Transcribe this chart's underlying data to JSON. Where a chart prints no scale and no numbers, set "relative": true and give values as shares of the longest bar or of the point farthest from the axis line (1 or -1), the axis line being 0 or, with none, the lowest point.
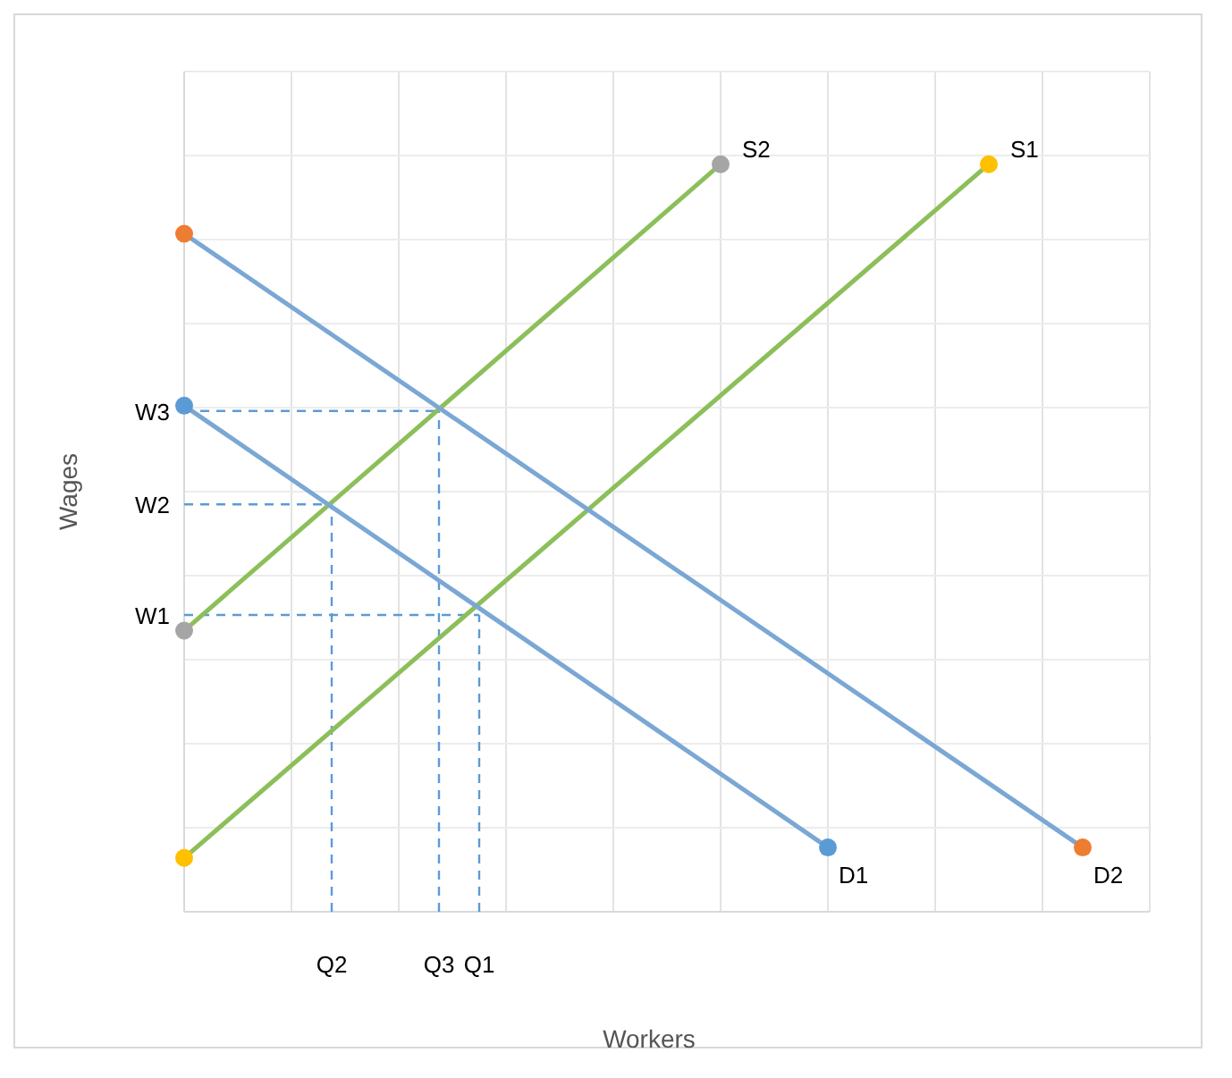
{
  "chart_data": {
    "type": "line",
    "relative": true,
    "xlabel": "Workers",
    "ylabel": "Wages",
    "grid": true,
    "marker": "circle",
    "line_style": "solid",
    "categories": [
      null,
      null,
      null,
      null,
      null,
      null,
      null,
      null,
      null,
      null,
      null,
      "Q2",
      null,
      null,
      null,
      null,
      null,
      null,
      null,
      "Q3",
      null,
      null,
      "Q1",
      null,
      null,
      null,
      null,
      null,
      null,
      null,
      null,
      null,
      null,
      null,
      null,
      null,
      null,
      null,
      null,
      null,
      null,
      null,
      null,
      null,
      null,
      null,
      null,
      null,
      null,
      null,
      null,
      null,
      null,
      null,
      null,
      null,
      null,
      null,
      null,
      null,
      null,
      null,
      null,
      null,
      null,
      null,
      null,
      null,
      null,
      null,
      null,
      null,
      null
    ],
    "series": [
      {
        "name": "S2",
        "color": "#8cbf5a",
        "colors": [
          "#a5a5a5",
          null,
          null,
          null,
          null,
          null,
          null,
          null,
          null,
          null,
          null,
          null,
          null,
          null,
          null,
          null,
          null,
          null,
          null,
          null,
          null,
          null,
          null,
          null,
          null,
          null,
          null,
          null,
          null,
          null,
          null,
          null,
          null,
          null,
          null,
          null,
          null,
          null,
          null,
          null,
          "#a5a5a5",
          null,
          null,
          null,
          null,
          null,
          null,
          null,
          null,
          null,
          null,
          null,
          null,
          null,
          null,
          null,
          null,
          null,
          null,
          null,
          null,
          null,
          null,
          null,
          null,
          null,
          null,
          null,
          null,
          null,
          null,
          null,
          null
        ],
        "values": [
          0.376,
          null,
          null,
          null,
          null,
          null,
          null,
          null,
          null,
          null,
          null,
          null,
          null,
          null,
          null,
          null,
          null,
          null,
          null,
          null,
          null,
          null,
          null,
          null,
          null,
          null,
          null,
          null,
          null,
          null,
          null,
          null,
          null,
          null,
          null,
          null,
          null,
          null,
          null,
          null,
          1,
          null,
          null,
          null,
          null,
          null,
          null,
          null,
          null,
          null,
          null,
          null,
          null,
          null,
          null,
          null,
          null,
          null,
          null,
          null,
          null,
          null,
          null,
          null,
          null,
          null,
          null,
          null,
          null,
          null,
          null,
          null,
          null
        ]
      },
      {
        "name": "S1",
        "color": "#8cbf5a",
        "colors": [
          "#ffc000",
          null,
          null,
          null,
          null,
          null,
          null,
          null,
          null,
          null,
          null,
          null,
          null,
          null,
          null,
          null,
          null,
          null,
          null,
          null,
          null,
          null,
          null,
          null,
          null,
          null,
          null,
          null,
          null,
          null,
          null,
          null,
          null,
          null,
          null,
          null,
          null,
          null,
          null,
          null,
          null,
          null,
          null,
          null,
          null,
          null,
          null,
          null,
          null,
          null,
          null,
          null,
          null,
          null,
          null,
          null,
          null,
          null,
          null,
          null,
          "#ffc000",
          null,
          null,
          null,
          null,
          null,
          null,
          null,
          null,
          null,
          null,
          null,
          null
        ],
        "values": [
          0.072,
          null,
          null,
          null,
          null,
          null,
          null,
          null,
          null,
          null,
          null,
          null,
          null,
          null,
          null,
          null,
          null,
          null,
          null,
          null,
          null,
          null,
          null,
          null,
          null,
          null,
          null,
          null,
          null,
          null,
          null,
          null,
          null,
          null,
          null,
          null,
          null,
          null,
          null,
          null,
          null,
          null,
          null,
          null,
          null,
          null,
          null,
          null,
          null,
          null,
          null,
          null,
          null,
          null,
          null,
          null,
          null,
          null,
          null,
          null,
          1,
          null,
          null,
          null,
          null,
          null,
          null,
          null,
          null,
          null,
          null,
          null,
          null
        ]
      },
      {
        "name": "D2",
        "color": "#7ba7d4",
        "colors": [
          "#ed7d31",
          null,
          null,
          null,
          null,
          null,
          null,
          null,
          null,
          null,
          null,
          null,
          null,
          null,
          null,
          null,
          null,
          null,
          null,
          null,
          null,
          null,
          null,
          null,
          null,
          null,
          null,
          null,
          null,
          null,
          null,
          null,
          null,
          null,
          null,
          null,
          null,
          null,
          null,
          null,
          null,
          null,
          null,
          null,
          null,
          null,
          null,
          null,
          null,
          null,
          null,
          null,
          null,
          null,
          null,
          null,
          null,
          null,
          null,
          null,
          null,
          null,
          null,
          null,
          null,
          null,
          null,
          "#ed7d31",
          null,
          null,
          null,
          null,
          null
        ],
        "values": [
          0.907,
          null,
          null,
          null,
          null,
          null,
          null,
          null,
          null,
          null,
          null,
          null,
          null,
          null,
          null,
          null,
          null,
          null,
          null,
          null,
          null,
          null,
          null,
          null,
          null,
          null,
          null,
          null,
          null,
          null,
          null,
          null,
          null,
          null,
          null,
          null,
          null,
          null,
          null,
          null,
          null,
          null,
          null,
          null,
          null,
          null,
          null,
          null,
          null,
          null,
          null,
          null,
          null,
          null,
          null,
          null,
          null,
          null,
          null,
          null,
          null,
          null,
          null,
          null,
          null,
          null,
          null,
          0.086,
          null,
          null,
          null,
          null,
          null
        ]
      },
      {
        "name": "D1",
        "color": "#7ba7d4",
        "colors": [
          "#5b9bd5",
          null,
          null,
          null,
          null,
          null,
          null,
          null,
          null,
          null,
          null,
          null,
          null,
          null,
          null,
          null,
          null,
          null,
          null,
          null,
          null,
          null,
          null,
          null,
          null,
          null,
          null,
          null,
          null,
          null,
          null,
          null,
          null,
          null,
          null,
          null,
          null,
          null,
          null,
          null,
          null,
          null,
          null,
          null,
          null,
          null,
          null,
          null,
          "#5b9bd5",
          null,
          null,
          null,
          null,
          null,
          null,
          null,
          null,
          null,
          null,
          null,
          null,
          null,
          null,
          null,
          null,
          null,
          null,
          null,
          null,
          null,
          null,
          null,
          null
        ],
        "values": [
          0.677,
          null,
          null,
          null,
          null,
          null,
          null,
          null,
          null,
          null,
          null,
          null,
          null,
          null,
          null,
          null,
          null,
          null,
          null,
          null,
          null,
          null,
          null,
          null,
          null,
          null,
          null,
          null,
          null,
          null,
          null,
          null,
          null,
          null,
          null,
          null,
          null,
          null,
          null,
          null,
          null,
          null,
          null,
          null,
          null,
          null,
          null,
          null,
          0.086,
          null,
          null,
          null,
          null,
          null,
          null,
          null,
          null,
          null,
          null,
          null,
          null,
          null,
          null,
          null,
          null,
          null,
          null,
          null,
          null,
          null,
          null,
          null,
          null
        ]
      }
    ],
    "ref_lines": [
      {
        "axis": "y",
        "value": 0.67,
        "label": "W3",
        "color": "#5b9bd5",
        "line_style": "dashed"
      },
      {
        "axis": "y",
        "value": 0.545,
        "label": "W2",
        "color": "#5b9bd5",
        "line_style": "dashed"
      },
      {
        "axis": "y",
        "value": 0.397,
        "label": "W1",
        "color": "#5b9bd5",
        "line_style": "dashed"
      },
      {
        "axis": "x",
        "value": "Q3",
        "color": "#5b9bd5",
        "line_style": "dashed"
      },
      {
        "axis": "x",
        "value": "Q2",
        "color": "#5b9bd5",
        "line_style": "dashed"
      },
      {
        "axis": "x",
        "value": "Q1",
        "color": "#5b9bd5",
        "line_style": "dashed"
      }
    ]
  }
}
